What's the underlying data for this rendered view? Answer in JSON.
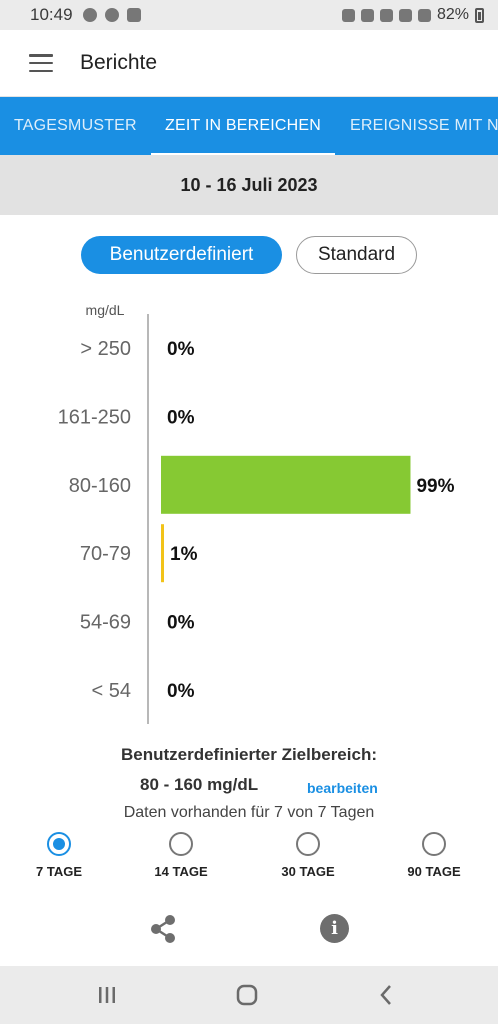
{
  "status_bar": {
    "time": "10:49",
    "battery": "82%"
  },
  "app_bar": {
    "title": "Berichte"
  },
  "tabs": [
    {
      "label": "TAGESMUSTER"
    },
    {
      "label": "ZEIT IN BEREICHEN"
    },
    {
      "label": "EREIGNISSE MIT NI"
    }
  ],
  "active_tab": "ZEIT IN BEREICHEN",
  "date_range": "10 - 16 Juli 2023",
  "toggle": {
    "custom": "Benutzerdefiniert",
    "standard": "Standard",
    "selected": "Benutzerdefiniert"
  },
  "chart_data": {
    "type": "bar",
    "orientation": "horizontal",
    "ylabel": "mg/dL",
    "categories": [
      "> 250",
      "161-250",
      "80-160",
      "70-79",
      "54-69",
      "< 54"
    ],
    "values": [
      0,
      0,
      99,
      1,
      0,
      0
    ],
    "value_labels": [
      "0%",
      "0%",
      "99%",
      "1%",
      "0%",
      "0%"
    ],
    "colors": [
      "#e0311e",
      "#f4a21c",
      "#86c933",
      "#f2c318",
      "#e0311e",
      "#b5131a"
    ],
    "xlim": [
      0,
      100
    ],
    "grid": false,
    "legend": "none"
  },
  "target": {
    "title": "Benutzerdefinierter Zielbereich:",
    "range": "80 - 160 mg/dL",
    "edit_label": "bearbeiten",
    "availability": "Daten vorhanden für 7 von 7 Tagen"
  },
  "period_options": [
    {
      "label": "7 TAGE",
      "checked": true
    },
    {
      "label": "14 TAGE",
      "checked": false
    },
    {
      "label": "30 TAGE",
      "checked": false
    },
    {
      "label": "90 TAGE",
      "checked": false
    }
  ],
  "colors": {
    "accent": "#1a8fe3",
    "in_range": "#86c933",
    "low": "#f2c318"
  },
  "icons": {
    "menu": "menu-icon",
    "share": "share-icon",
    "info": "info-icon"
  }
}
